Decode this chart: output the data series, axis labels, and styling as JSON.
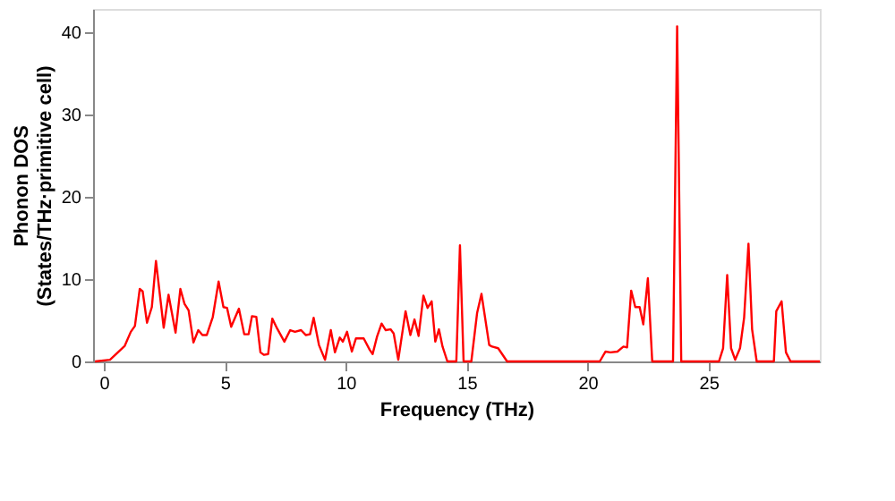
{
  "chart_data": {
    "type": "line",
    "xlabel": "Frequency (THz)",
    "ylabel": "Phonon DOS\n(States/THz·primitive cell)",
    "x": [
      -0.37,
      0.25,
      0.86,
      1.11,
      1.28,
      1.48,
      1.6,
      1.78,
      1.98,
      2.15,
      2.47,
      2.67,
      2.96,
      3.16,
      3.33,
      3.5,
      3.7,
      3.9,
      4.07,
      4.25,
      4.5,
      4.74,
      4.94,
      5.09,
      5.26,
      5.58,
      5.8,
      5.98,
      6.12,
      6.3,
      6.47,
      6.62,
      6.79,
      6.96,
      7.16,
      7.46,
      7.7,
      7.9,
      8.15,
      8.35,
      8.52,
      8.67,
      8.89,
      9.14,
      9.38,
      9.55,
      9.75,
      9.88,
      10.05,
      10.25,
      10.42,
      10.74,
      10.99,
      11.11,
      11.29,
      11.48,
      11.65,
      11.85,
      11.98,
      12.17,
      12.47,
      12.67,
      12.84,
      13.01,
      13.21,
      13.38,
      13.55,
      13.7,
      13.85,
      14.0,
      14.2,
      14.57,
      14.72,
      14.87,
      15.19,
      15.43,
      15.61,
      15.93,
      16.05,
      16.3,
      16.67,
      20.5,
      20.74,
      20.94,
      21.23,
      21.48,
      21.63,
      21.8,
      21.97,
      22.15,
      22.3,
      22.49,
      22.67,
      23.53,
      23.7,
      23.87,
      25.43,
      25.6,
      25.77,
      25.93,
      26.1,
      26.3,
      26.47,
      26.65,
      26.8,
      26.99,
      27.7,
      27.8,
      28.02,
      28.2,
      28.39,
      29.6
    ],
    "series": [
      {
        "color": "#ff0000",
        "values": [
          0,
          0.2,
          1.9,
          3.6,
          4.3,
          8.8,
          8.5,
          4.7,
          6.6,
          12.2,
          4.1,
          8.1,
          3.5,
          8.8,
          7.0,
          6.2,
          2.3,
          3.8,
          3.2,
          3.2,
          5.4,
          9.7,
          6.6,
          6.5,
          4.2,
          6.4,
          3.3,
          3.3,
          5.5,
          5.4,
          1.1,
          0.8,
          0.9,
          5.2,
          4.0,
          2.4,
          3.8,
          3.6,
          3.8,
          3.2,
          3.3,
          5.3,
          2.0,
          0.2,
          3.8,
          1.1,
          2.9,
          2.4,
          3.6,
          1.2,
          2.8,
          2.8,
          1.4,
          0.9,
          3.0,
          4.6,
          3.8,
          3.9,
          3.4,
          0.2,
          6.1,
          3.2,
          5.1,
          3.1,
          8.0,
          6.5,
          7.3,
          2.4,
          3.9,
          1.8,
          0,
          0,
          14.1,
          0,
          0,
          5.9,
          8.2,
          2.0,
          1.8,
          1.6,
          0,
          0,
          1.2,
          1.1,
          1.2,
          1.8,
          1.7,
          8.6,
          6.6,
          6.6,
          4.5,
          10.1,
          0,
          0,
          40.7,
          0,
          0,
          1.6,
          10.5,
          1.6,
          0.2,
          1.6,
          5.3,
          14.3,
          3.9,
          0,
          0,
          6.1,
          7.3,
          1.1,
          0,
          0
        ]
      }
    ],
    "xlim": [
      -0.45,
      29.6
    ],
    "ylim": [
      0,
      42.8
    ],
    "xticks": [
      0,
      5,
      10,
      15,
      20,
      25
    ],
    "yticks": [
      0,
      10,
      20,
      30,
      40
    ],
    "grid": false
  }
}
